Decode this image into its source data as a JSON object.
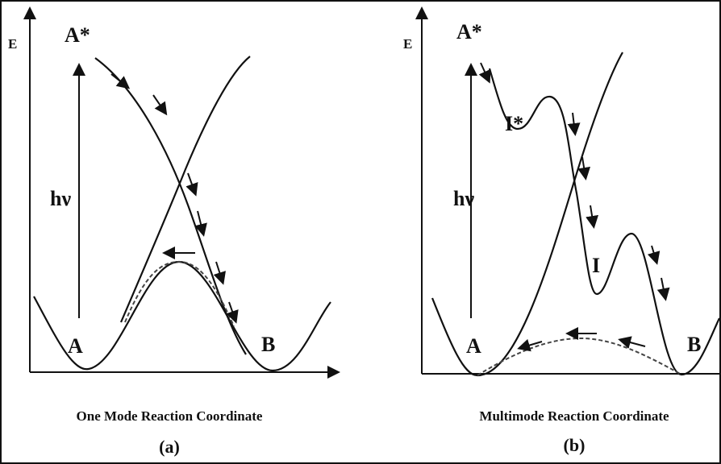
{
  "panels": [
    {
      "energy_label": "E",
      "excited": "A*",
      "photon": "hν",
      "reactant": "A",
      "product": "B",
      "caption": "One Mode Reaction Coordinate",
      "tag": "(a)"
    },
    {
      "energy_label": "E",
      "excited": "A*",
      "intermediate_excited": "I*",
      "photon": "hν",
      "intermediate": "I",
      "reactant": "A",
      "product": "B",
      "caption": "Multimode Reaction Coordinate",
      "tag": "(b)"
    }
  ]
}
